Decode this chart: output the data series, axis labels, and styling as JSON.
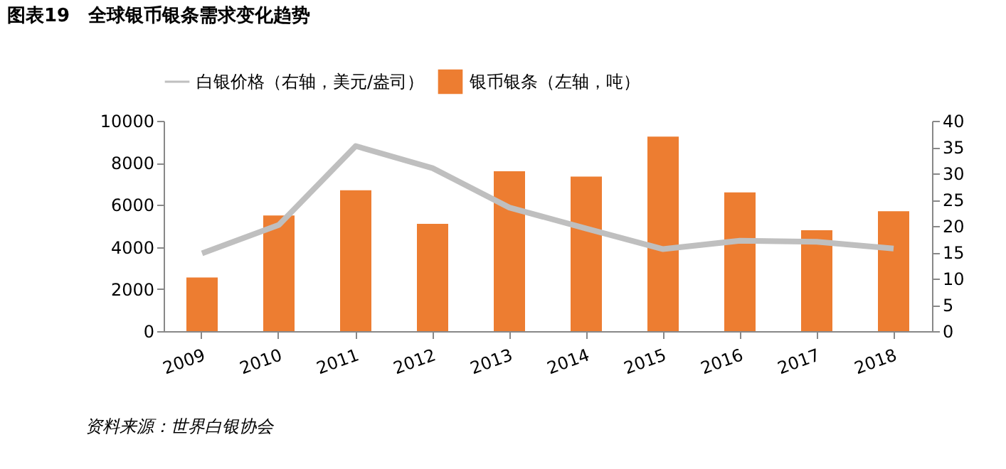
{
  "chart_data": {
    "type": "bar",
    "title": "图表19　全球银币银条需求变化趋势",
    "categories": [
      "2009",
      "2010",
      "2011",
      "2012",
      "2013",
      "2014",
      "2015",
      "2016",
      "2017",
      "2018"
    ],
    "series": [
      {
        "name": "银币银条（左轴，吨）",
        "color": "#ed7d31",
        "values": [
          2550,
          5500,
          6700,
          5100,
          7600,
          7350,
          9250,
          6600,
          4800,
          5700
        ]
      },
      {
        "name": "白银价格（右轴，美元/盎司）",
        "type": "line",
        "axis": "y2",
        "color": "#bfbfbf",
        "values": [
          14.8,
          20.2,
          35.2,
          31.0,
          23.5,
          19.5,
          15.6,
          17.2,
          17.0,
          15.7
        ]
      }
    ],
    "ylim": [
      0,
      10000
    ],
    "yticks": [
      0,
      2000,
      4000,
      6000,
      8000,
      10000
    ],
    "y2lim": [
      0,
      40
    ],
    "y2ticks": [
      0,
      5,
      10,
      15,
      20,
      25,
      30,
      35,
      40
    ],
    "grid": false,
    "legend": "top",
    "marker": "none",
    "annotations": [
      "资料来源：世界白银协会"
    ]
  }
}
